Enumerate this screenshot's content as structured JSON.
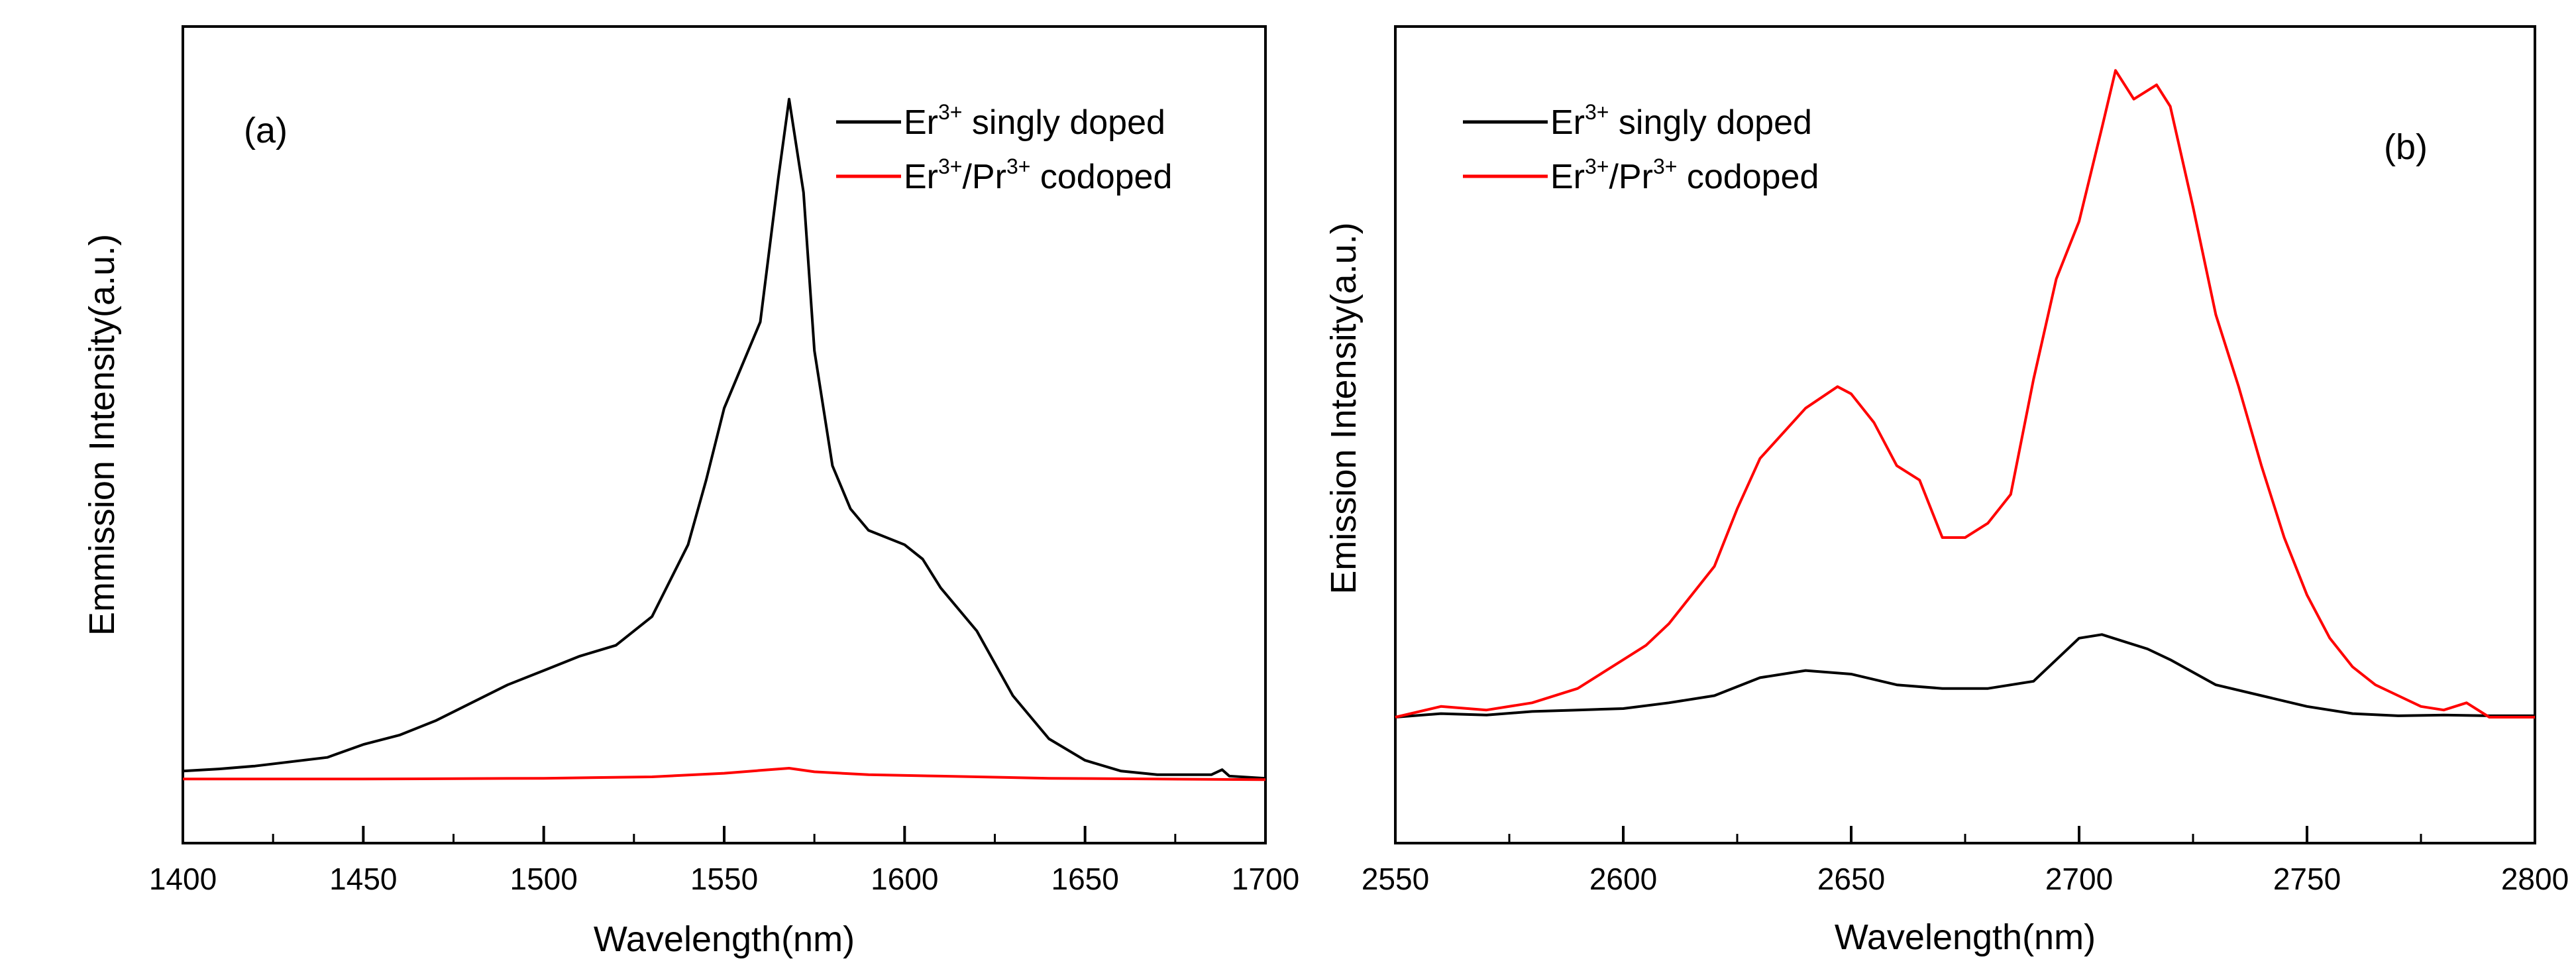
{
  "chart_data": [
    {
      "type": "line",
      "panel_label": "(a)",
      "xlabel": "Wavelength(nm)",
      "ylabel": "Emmission Intensity(a.u.)",
      "xlim": [
        1400,
        1700
      ],
      "ylim": [
        0,
        100
      ],
      "x_ticks": [
        1400,
        1450,
        1500,
        1550,
        1600,
        1650,
        1700
      ],
      "x_tick_labels": [
        "1400",
        "1450",
        "1500",
        "1550",
        "1600",
        "1650",
        "1700"
      ],
      "legend_position": "top-right",
      "series": [
        {
          "name": "Er3+ singly doped",
          "legend_parts": [
            "Er",
            "3+",
            " singly doped"
          ],
          "color": "#000000",
          "points": [
            [
              1400,
              1.5
            ],
            [
              1410,
              1.8
            ],
            [
              1420,
              2.2
            ],
            [
              1430,
              2.8
            ],
            [
              1440,
              3.4
            ],
            [
              1450,
              5.2
            ],
            [
              1460,
              6.5
            ],
            [
              1470,
              8.5
            ],
            [
              1480,
              11
            ],
            [
              1490,
              13.5
            ],
            [
              1500,
              15.5
            ],
            [
              1510,
              17.5
            ],
            [
              1520,
              19
            ],
            [
              1530,
              23
            ],
            [
              1540,
              33
            ],
            [
              1545,
              42
            ],
            [
              1550,
              52
            ],
            [
              1555,
              58
            ],
            [
              1560,
              64
            ],
            [
              1565,
              84
            ],
            [
              1568,
              95
            ],
            [
              1572,
              82
            ],
            [
              1575,
              60
            ],
            [
              1580,
              44
            ],
            [
              1585,
              38
            ],
            [
              1590,
              35
            ],
            [
              1600,
              33
            ],
            [
              1605,
              31
            ],
            [
              1610,
              27
            ],
            [
              1620,
              21
            ],
            [
              1630,
              12
            ],
            [
              1640,
              6
            ],
            [
              1650,
              3
            ],
            [
              1660,
              1.5
            ],
            [
              1670,
              1
            ],
            [
              1685,
              1
            ],
            [
              1688,
              1.7
            ],
            [
              1690,
              0.8
            ],
            [
              1700,
              0.5
            ]
          ]
        },
        {
          "name": "Er3+/Pr3+ codoped",
          "legend_parts": [
            "Er",
            "3+",
            "/Pr",
            "3+",
            " codoped"
          ],
          "color": "#ff0000",
          "points": [
            [
              1400,
              0.4
            ],
            [
              1450,
              0.4
            ],
            [
              1500,
              0.5
            ],
            [
              1530,
              0.7
            ],
            [
              1550,
              1.2
            ],
            [
              1560,
              1.6
            ],
            [
              1568,
              1.9
            ],
            [
              1575,
              1.4
            ],
            [
              1590,
              1.0
            ],
            [
              1610,
              0.8
            ],
            [
              1640,
              0.5
            ],
            [
              1670,
              0.4
            ],
            [
              1700,
              0.3
            ]
          ]
        }
      ]
    },
    {
      "type": "line",
      "panel_label": "(b)",
      "xlabel": "Wavelength(nm)",
      "ylabel": "Emission Intensity(a.u.)",
      "xlim": [
        2550,
        2800
      ],
      "ylim": [
        0,
        100
      ],
      "x_ticks": [
        2550,
        2600,
        2650,
        2700,
        2750,
        2800
      ],
      "x_tick_labels": [
        "2550",
        "2600",
        "2650",
        "2700",
        "2750",
        "2800"
      ],
      "legend_position": "top-left",
      "series": [
        {
          "name": "Er3+ singly doped",
          "legend_parts": [
            "Er",
            "3+",
            " singly doped"
          ],
          "color": "#000000",
          "points": [
            [
              2550,
              9
            ],
            [
              2560,
              9.5
            ],
            [
              2570,
              9.3
            ],
            [
              2580,
              9.8
            ],
            [
              2590,
              10
            ],
            [
              2600,
              10.2
            ],
            [
              2610,
              11
            ],
            [
              2620,
              12
            ],
            [
              2630,
              14.5
            ],
            [
              2640,
              15.5
            ],
            [
              2650,
              15
            ],
            [
              2660,
              13.5
            ],
            [
              2670,
              13
            ],
            [
              2680,
              13
            ],
            [
              2690,
              14
            ],
            [
              2695,
              17
            ],
            [
              2700,
              20
            ],
            [
              2705,
              20.5
            ],
            [
              2710,
              19.5
            ],
            [
              2715,
              18.5
            ],
            [
              2720,
              17
            ],
            [
              2730,
              13.5
            ],
            [
              2740,
              12
            ],
            [
              2750,
              10.5
            ],
            [
              2760,
              9.5
            ],
            [
              2770,
              9.2
            ],
            [
              2780,
              9.3
            ],
            [
              2790,
              9.2
            ],
            [
              2800,
              9.2
            ]
          ]
        },
        {
          "name": "Er3+/Pr3+ codoped",
          "legend_parts": [
            "Er",
            "3+",
            "/Pr",
            "3+",
            " codoped"
          ],
          "color": "#ff0000",
          "points": [
            [
              2550,
              9
            ],
            [
              2560,
              10.5
            ],
            [
              2570,
              10
            ],
            [
              2580,
              11
            ],
            [
              2590,
              13
            ],
            [
              2595,
              15
            ],
            [
              2600,
              17
            ],
            [
              2605,
              19
            ],
            [
              2610,
              22
            ],
            [
              2620,
              30
            ],
            [
              2625,
              38
            ],
            [
              2630,
              45
            ],
            [
              2640,
              52
            ],
            [
              2647,
              55
            ],
            [
              2650,
              54
            ],
            [
              2655,
              50
            ],
            [
              2660,
              44
            ],
            [
              2665,
              42
            ],
            [
              2670,
              34
            ],
            [
              2675,
              34
            ],
            [
              2680,
              36
            ],
            [
              2685,
              40
            ],
            [
              2690,
              56
            ],
            [
              2695,
              70
            ],
            [
              2700,
              78
            ],
            [
              2705,
              91
            ],
            [
              2708,
              99
            ],
            [
              2712,
              95
            ],
            [
              2717,
              97
            ],
            [
              2720,
              94
            ],
            [
              2725,
              80
            ],
            [
              2730,
              65
            ],
            [
              2735,
              55
            ],
            [
              2740,
              44
            ],
            [
              2745,
              34
            ],
            [
              2750,
              26
            ],
            [
              2755,
              20
            ],
            [
              2760,
              16
            ],
            [
              2765,
              13.5
            ],
            [
              2770,
              12
            ],
            [
              2775,
              10.5
            ],
            [
              2780,
              10
            ],
            [
              2785,
              11
            ],
            [
              2790,
              9
            ],
            [
              2800,
              9
            ]
          ]
        }
      ]
    }
  ]
}
